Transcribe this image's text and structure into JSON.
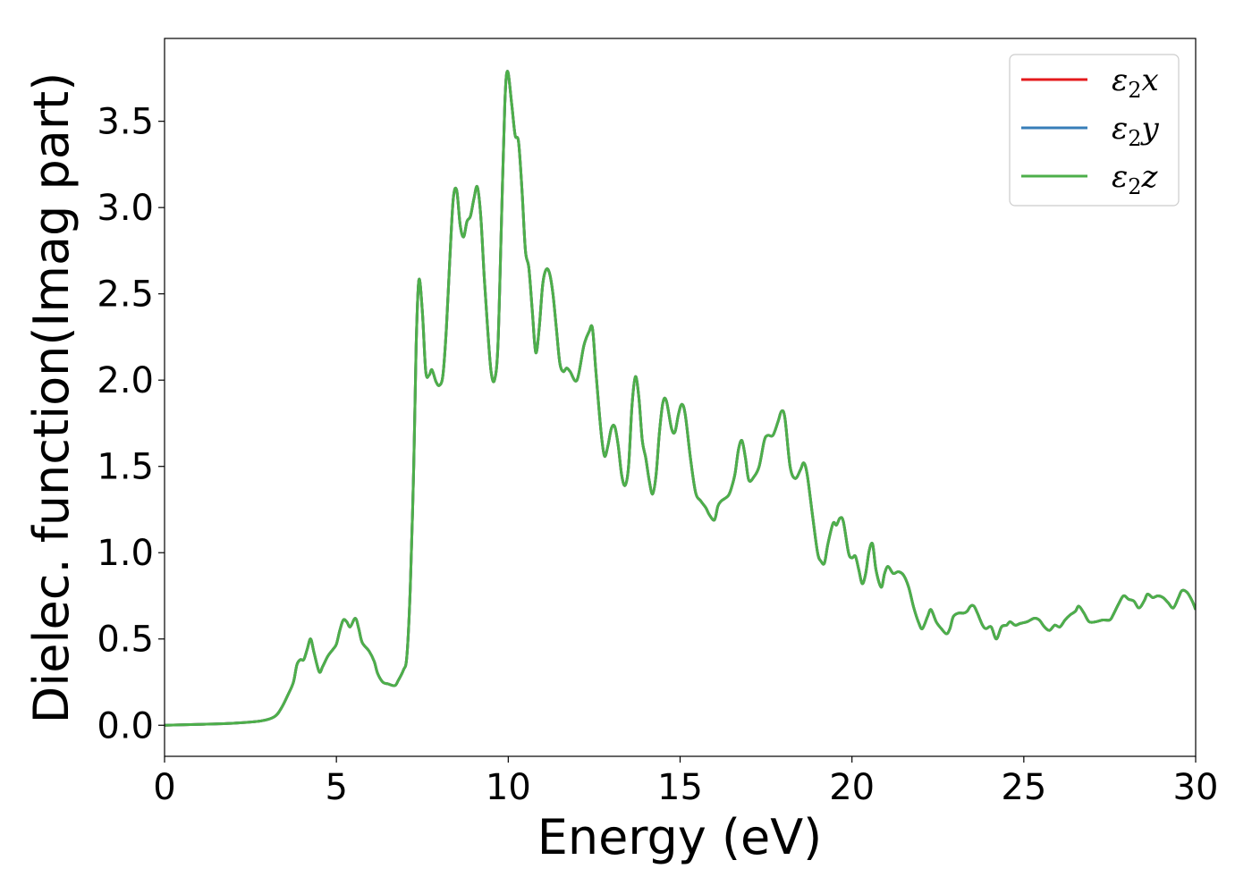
{
  "chart_data": {
    "type": "line",
    "title": "",
    "xlabel": "Energy (eV)",
    "ylabel": "Dielec. function(Imag part)",
    "xlim": [
      0,
      30
    ],
    "ylim": [
      -0.18,
      3.98
    ],
    "x_ticks": [
      "0",
      "5",
      "10",
      "15",
      "20",
      "25",
      "30"
    ],
    "y_ticks": [
      "0.0",
      "0.5",
      "1.0",
      "1.5",
      "2.0",
      "2.5",
      "3.0",
      "3.5"
    ],
    "grid": false,
    "legend": {
      "position": "top-right",
      "entries": [
        {
          "symbol": "ε",
          "sub": "2",
          "var": "x",
          "color": "#e41a1c"
        },
        {
          "symbol": "ε",
          "sub": "2",
          "var": "y",
          "color": "#377eb8"
        },
        {
          "symbol": "ε",
          "sub": "2",
          "var": "z",
          "color": "#4daf4a"
        }
      ]
    },
    "series": [
      {
        "name": "ε2x",
        "color": "#e41a1c",
        "ref": "points"
      },
      {
        "name": "ε2y",
        "color": "#377eb8",
        "ref": "points"
      },
      {
        "name": "ε2z",
        "color": "#4daf4a",
        "ref": "points"
      }
    ],
    "points": [
      [
        0,
        0.0
      ],
      [
        1,
        0.005
      ],
      [
        2,
        0.012
      ],
      [
        2.8,
        0.025
      ],
      [
        3.2,
        0.05
      ],
      [
        3.4,
        0.1
      ],
      [
        3.6,
        0.18
      ],
      [
        3.75,
        0.25
      ],
      [
        3.85,
        0.35
      ],
      [
        3.95,
        0.38
      ],
      [
        4.05,
        0.38
      ],
      [
        4.15,
        0.44
      ],
      [
        4.25,
        0.5
      ],
      [
        4.35,
        0.42
      ],
      [
        4.5,
        0.31
      ],
      [
        4.6,
        0.34
      ],
      [
        4.75,
        0.4
      ],
      [
        4.9,
        0.44
      ],
      [
        5.0,
        0.47
      ],
      [
        5.1,
        0.55
      ],
      [
        5.2,
        0.61
      ],
      [
        5.3,
        0.6
      ],
      [
        5.4,
        0.57
      ],
      [
        5.55,
        0.62
      ],
      [
        5.65,
        0.56
      ],
      [
        5.75,
        0.48
      ],
      [
        5.95,
        0.43
      ],
      [
        6.1,
        0.37
      ],
      [
        6.2,
        0.3
      ],
      [
        6.35,
        0.25
      ],
      [
        6.5,
        0.24
      ],
      [
        6.7,
        0.23
      ],
      [
        6.8,
        0.26
      ],
      [
        6.95,
        0.32
      ],
      [
        7.05,
        0.4
      ],
      [
        7.15,
        0.8
      ],
      [
        7.25,
        1.5
      ],
      [
        7.32,
        2.2
      ],
      [
        7.4,
        2.58
      ],
      [
        7.5,
        2.4
      ],
      [
        7.6,
        2.05
      ],
      [
        7.7,
        2.03
      ],
      [
        7.78,
        2.06
      ],
      [
        7.9,
        1.99
      ],
      [
        8.0,
        1.97
      ],
      [
        8.1,
        2.03
      ],
      [
        8.2,
        2.3
      ],
      [
        8.3,
        2.7
      ],
      [
        8.4,
        3.05
      ],
      [
        8.5,
        3.1
      ],
      [
        8.6,
        2.9
      ],
      [
        8.7,
        2.83
      ],
      [
        8.8,
        2.92
      ],
      [
        8.9,
        2.95
      ],
      [
        9.0,
        3.05
      ],
      [
        9.1,
        3.12
      ],
      [
        9.2,
        2.95
      ],
      [
        9.3,
        2.6
      ],
      [
        9.4,
        2.3
      ],
      [
        9.5,
        2.05
      ],
      [
        9.6,
        2.0
      ],
      [
        9.7,
        2.2
      ],
      [
        9.8,
        2.9
      ],
      [
        9.9,
        3.6
      ],
      [
        9.98,
        3.79
      ],
      [
        10.1,
        3.6
      ],
      [
        10.2,
        3.42
      ],
      [
        10.3,
        3.38
      ],
      [
        10.4,
        3.1
      ],
      [
        10.5,
        2.75
      ],
      [
        10.6,
        2.65
      ],
      [
        10.7,
        2.4
      ],
      [
        10.8,
        2.16
      ],
      [
        10.9,
        2.3
      ],
      [
        11.0,
        2.55
      ],
      [
        11.1,
        2.64
      ],
      [
        11.2,
        2.62
      ],
      [
        11.3,
        2.5
      ],
      [
        11.4,
        2.3
      ],
      [
        11.5,
        2.1
      ],
      [
        11.6,
        2.05
      ],
      [
        11.7,
        2.07
      ],
      [
        11.8,
        2.05
      ],
      [
        12.0,
        2.0
      ],
      [
        12.2,
        2.2
      ],
      [
        12.35,
        2.28
      ],
      [
        12.45,
        2.3
      ],
      [
        12.55,
        2.05
      ],
      [
        12.7,
        1.7
      ],
      [
        12.8,
        1.56
      ],
      [
        12.9,
        1.62
      ],
      [
        13.0,
        1.72
      ],
      [
        13.1,
        1.73
      ],
      [
        13.2,
        1.62
      ],
      [
        13.3,
        1.45
      ],
      [
        13.4,
        1.39
      ],
      [
        13.5,
        1.5
      ],
      [
        13.6,
        1.85
      ],
      [
        13.7,
        2.02
      ],
      [
        13.8,
        1.9
      ],
      [
        13.9,
        1.65
      ],
      [
        14.0,
        1.55
      ],
      [
        14.1,
        1.42
      ],
      [
        14.2,
        1.34
      ],
      [
        14.3,
        1.45
      ],
      [
        14.4,
        1.7
      ],
      [
        14.5,
        1.87
      ],
      [
        14.6,
        1.88
      ],
      [
        14.75,
        1.72
      ],
      [
        14.85,
        1.7
      ],
      [
        14.95,
        1.8
      ],
      [
        15.05,
        1.86
      ],
      [
        15.15,
        1.8
      ],
      [
        15.3,
        1.55
      ],
      [
        15.45,
        1.35
      ],
      [
        15.6,
        1.3
      ],
      [
        15.75,
        1.26
      ],
      [
        15.85,
        1.22
      ],
      [
        16.0,
        1.19
      ],
      [
        16.1,
        1.27
      ],
      [
        16.2,
        1.3
      ],
      [
        16.4,
        1.33
      ],
      [
        16.5,
        1.38
      ],
      [
        16.6,
        1.46
      ],
      [
        16.7,
        1.6
      ],
      [
        16.8,
        1.65
      ],
      [
        16.9,
        1.55
      ],
      [
        17.0,
        1.42
      ],
      [
        17.15,
        1.44
      ],
      [
        17.3,
        1.5
      ],
      [
        17.45,
        1.65
      ],
      [
        17.55,
        1.68
      ],
      [
        17.7,
        1.68
      ],
      [
        17.85,
        1.76
      ],
      [
        17.95,
        1.82
      ],
      [
        18.05,
        1.78
      ],
      [
        18.2,
        1.5
      ],
      [
        18.35,
        1.43
      ],
      [
        18.5,
        1.48
      ],
      [
        18.6,
        1.52
      ],
      [
        18.7,
        1.45
      ],
      [
        18.85,
        1.22
      ],
      [
        19.0,
        1.0
      ],
      [
        19.1,
        0.95
      ],
      [
        19.2,
        0.94
      ],
      [
        19.3,
        1.05
      ],
      [
        19.45,
        1.17
      ],
      [
        19.55,
        1.16
      ],
      [
        19.65,
        1.2
      ],
      [
        19.75,
        1.18
      ],
      [
        19.9,
        1.0
      ],
      [
        20.0,
        0.97
      ],
      [
        20.1,
        0.98
      ],
      [
        20.2,
        0.9
      ],
      [
        20.3,
        0.82
      ],
      [
        20.4,
        0.88
      ],
      [
        20.5,
        1.01
      ],
      [
        20.6,
        1.05
      ],
      [
        20.7,
        0.9
      ],
      [
        20.85,
        0.8
      ],
      [
        20.95,
        0.88
      ],
      [
        21.05,
        0.92
      ],
      [
        21.2,
        0.88
      ],
      [
        21.35,
        0.89
      ],
      [
        21.5,
        0.87
      ],
      [
        21.65,
        0.8
      ],
      [
        21.8,
        0.68
      ],
      [
        21.95,
        0.59
      ],
      [
        22.05,
        0.56
      ],
      [
        22.2,
        0.63
      ],
      [
        22.3,
        0.67
      ],
      [
        22.45,
        0.6
      ],
      [
        22.6,
        0.56
      ],
      [
        22.75,
        0.53
      ],
      [
        22.85,
        0.56
      ],
      [
        22.95,
        0.63
      ],
      [
        23.1,
        0.65
      ],
      [
        23.25,
        0.65
      ],
      [
        23.35,
        0.66
      ],
      [
        23.45,
        0.69
      ],
      [
        23.55,
        0.69
      ],
      [
        23.65,
        0.65
      ],
      [
        23.8,
        0.58
      ],
      [
        23.9,
        0.56
      ],
      [
        24.05,
        0.57
      ],
      [
        24.2,
        0.5
      ],
      [
        24.35,
        0.57
      ],
      [
        24.5,
        0.58
      ],
      [
        24.6,
        0.6
      ],
      [
        24.75,
        0.58
      ],
      [
        24.9,
        0.59
      ],
      [
        25.1,
        0.6
      ],
      [
        25.3,
        0.62
      ],
      [
        25.45,
        0.61
      ],
      [
        25.6,
        0.57
      ],
      [
        25.75,
        0.55
      ],
      [
        25.9,
        0.58
      ],
      [
        26.05,
        0.57
      ],
      [
        26.2,
        0.61
      ],
      [
        26.35,
        0.64
      ],
      [
        26.5,
        0.66
      ],
      [
        26.6,
        0.69
      ],
      [
        26.75,
        0.65
      ],
      [
        26.9,
        0.6
      ],
      [
        27.1,
        0.6
      ],
      [
        27.3,
        0.61
      ],
      [
        27.5,
        0.61
      ],
      [
        27.6,
        0.64
      ],
      [
        27.75,
        0.7
      ],
      [
        27.9,
        0.75
      ],
      [
        28.05,
        0.73
      ],
      [
        28.2,
        0.72
      ],
      [
        28.35,
        0.68
      ],
      [
        28.5,
        0.72
      ],
      [
        28.6,
        0.76
      ],
      [
        28.75,
        0.74
      ],
      [
        28.9,
        0.75
      ],
      [
        29.05,
        0.74
      ],
      [
        29.2,
        0.71
      ],
      [
        29.35,
        0.68
      ],
      [
        29.5,
        0.74
      ],
      [
        29.6,
        0.78
      ],
      [
        29.75,
        0.77
      ],
      [
        29.9,
        0.72
      ],
      [
        30.0,
        0.67
      ]
    ]
  }
}
